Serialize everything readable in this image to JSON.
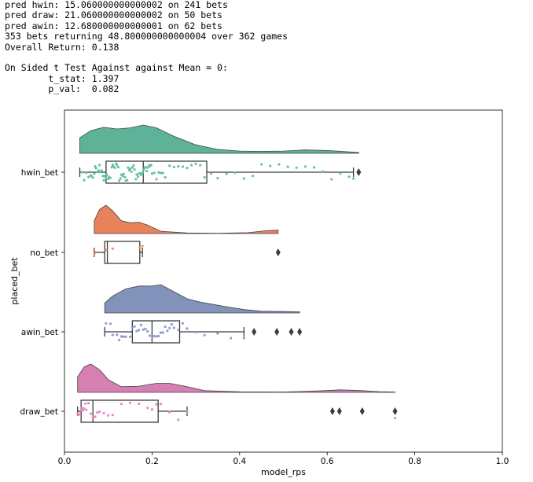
{
  "console": {
    "lines": [
      "pred hwin: 15.060000000000002 on 241 bets",
      "pred draw: 21.060000000000002 on 50 bets",
      "pred awin: 12.680000000000001 on 62 bets",
      "353 bets returning 48.800000000000004 over 362 games",
      "Overall Return: 0.138",
      "",
      "On Sided t Test Against against Mean = 0:",
      "        t_stat: 1.397",
      "        p_val:  0.082"
    ]
  },
  "chart_data": {
    "type": "raincloud",
    "xlabel": "model_rps",
    "ylabel": "placed_bet",
    "xlim": [
      0.0,
      1.0
    ],
    "xticks": [
      "0.0",
      "0.2",
      "0.4",
      "0.6",
      "0.8",
      "1.0"
    ],
    "xtick_values": [
      0.0,
      0.2,
      0.4,
      0.6,
      0.8,
      1.0
    ],
    "grid": false,
    "orientation": "horizontal",
    "categories": [
      "hwin_bet",
      "no_bet",
      "awin_bet",
      "draw_bet"
    ],
    "series": [
      {
        "name": "hwin_bet",
        "color": "#66c2a5",
        "box": {
          "whisker_low": 0.035,
          "q1": 0.095,
          "median": 0.18,
          "q3": 0.325,
          "whisker_high": 0.66
        },
        "outliers": [
          0.672
        ],
        "density_range": [
          0.035,
          0.672
        ],
        "density": [
          [
            0.035,
            0.55
          ],
          [
            0.06,
            0.8
          ],
          [
            0.09,
            0.92
          ],
          [
            0.12,
            0.86
          ],
          [
            0.15,
            0.9
          ],
          [
            0.18,
            1.0
          ],
          [
            0.21,
            0.9
          ],
          [
            0.25,
            0.6
          ],
          [
            0.3,
            0.3
          ],
          [
            0.35,
            0.14
          ],
          [
            0.4,
            0.08
          ],
          [
            0.45,
            0.07
          ],
          [
            0.5,
            0.08
          ],
          [
            0.55,
            0.12
          ],
          [
            0.6,
            0.1
          ],
          [
            0.64,
            0.06
          ],
          [
            0.672,
            0.03
          ]
        ],
        "points": [
          0.04,
          0.045,
          0.05,
          0.055,
          0.06,
          0.062,
          0.065,
          0.068,
          0.07,
          0.072,
          0.075,
          0.078,
          0.08,
          0.082,
          0.085,
          0.088,
          0.09,
          0.092,
          0.095,
          0.097,
          0.1,
          0.102,
          0.105,
          0.108,
          0.11,
          0.112,
          0.115,
          0.118,
          0.12,
          0.123,
          0.125,
          0.128,
          0.13,
          0.133,
          0.135,
          0.138,
          0.14,
          0.143,
          0.145,
          0.148,
          0.15,
          0.153,
          0.155,
          0.158,
          0.16,
          0.163,
          0.165,
          0.168,
          0.17,
          0.173,
          0.175,
          0.178,
          0.18,
          0.183,
          0.185,
          0.188,
          0.19,
          0.193,
          0.195,
          0.198,
          0.2,
          0.205,
          0.21,
          0.215,
          0.22,
          0.225,
          0.23,
          0.24,
          0.25,
          0.26,
          0.27,
          0.28,
          0.29,
          0.3,
          0.31,
          0.32,
          0.335,
          0.35,
          0.37,
          0.39,
          0.41,
          0.43,
          0.45,
          0.47,
          0.49,
          0.51,
          0.53,
          0.55,
          0.57,
          0.59,
          0.61,
          0.63,
          0.65,
          0.66
        ]
      },
      {
        "name": "no_bet",
        "color": "#fc8d62",
        "box": {
          "whisker_low": 0.068,
          "q1": 0.092,
          "median": 0.098,
          "q3": 0.172,
          "whisker_high": 0.178
        },
        "outliers": [
          0.488
        ],
        "density_range": [
          0.068,
          0.488
        ],
        "density": [
          [
            0.068,
            0.45
          ],
          [
            0.08,
            0.85
          ],
          [
            0.095,
            1.0
          ],
          [
            0.11,
            0.8
          ],
          [
            0.13,
            0.45
          ],
          [
            0.15,
            0.38
          ],
          [
            0.17,
            0.4
          ],
          [
            0.19,
            0.3
          ],
          [
            0.22,
            0.08
          ],
          [
            0.28,
            0.02
          ],
          [
            0.35,
            0.01
          ],
          [
            0.42,
            0.03
          ],
          [
            0.46,
            0.1
          ],
          [
            0.488,
            0.12
          ]
        ],
        "points": [
          0.068,
          0.095,
          0.11,
          0.172,
          0.178
        ]
      },
      {
        "name": "awin_bet",
        "color": "#8da0cb",
        "box": {
          "whisker_low": 0.092,
          "q1": 0.155,
          "median": 0.2,
          "q3": 0.263,
          "whisker_high": 0.41
        },
        "outliers": [
          0.433,
          0.485,
          0.518,
          0.537
        ],
        "density_range": [
          0.092,
          0.537
        ],
        "density": [
          [
            0.092,
            0.35
          ],
          [
            0.11,
            0.6
          ],
          [
            0.14,
            0.85
          ],
          [
            0.17,
            0.95
          ],
          [
            0.2,
            0.95
          ],
          [
            0.22,
            1.0
          ],
          [
            0.25,
            0.75
          ],
          [
            0.28,
            0.5
          ],
          [
            0.31,
            0.38
          ],
          [
            0.34,
            0.3
          ],
          [
            0.37,
            0.22
          ],
          [
            0.41,
            0.12
          ],
          [
            0.45,
            0.06
          ],
          [
            0.5,
            0.05
          ],
          [
            0.537,
            0.04
          ]
        ],
        "points": [
          0.095,
          0.105,
          0.11,
          0.12,
          0.125,
          0.13,
          0.135,
          0.14,
          0.15,
          0.155,
          0.16,
          0.165,
          0.17,
          0.175,
          0.18,
          0.185,
          0.19,
          0.195,
          0.2,
          0.205,
          0.21,
          0.215,
          0.22,
          0.225,
          0.23,
          0.235,
          0.24,
          0.245,
          0.25,
          0.26,
          0.27,
          0.28,
          0.3,
          0.32,
          0.35,
          0.38,
          0.41
        ]
      },
      {
        "name": "draw_bet",
        "color": "#e78ac3",
        "box": {
          "whisker_low": 0.03,
          "q1": 0.038,
          "median": 0.065,
          "q3": 0.214,
          "whisker_high": 0.28
        },
        "outliers": [
          0.612,
          0.628,
          0.68,
          0.755
        ],
        "density_range": [
          0.03,
          0.755
        ],
        "density": [
          [
            0.03,
            0.55
          ],
          [
            0.045,
            0.9
          ],
          [
            0.06,
            1.0
          ],
          [
            0.08,
            0.8
          ],
          [
            0.1,
            0.45
          ],
          [
            0.13,
            0.2
          ],
          [
            0.17,
            0.22
          ],
          [
            0.21,
            0.32
          ],
          [
            0.24,
            0.32
          ],
          [
            0.28,
            0.2
          ],
          [
            0.32,
            0.06
          ],
          [
            0.4,
            0.02
          ],
          [
            0.5,
            0.015
          ],
          [
            0.58,
            0.05
          ],
          [
            0.63,
            0.09
          ],
          [
            0.68,
            0.06
          ],
          [
            0.72,
            0.025
          ],
          [
            0.755,
            0.015
          ]
        ],
        "points": [
          0.03,
          0.032,
          0.035,
          0.038,
          0.04,
          0.042,
          0.045,
          0.048,
          0.05,
          0.055,
          0.06,
          0.065,
          0.07,
          0.075,
          0.08,
          0.09,
          0.1,
          0.11,
          0.13,
          0.15,
          0.17,
          0.19,
          0.2,
          0.21,
          0.22,
          0.24,
          0.26,
          0.28,
          0.755
        ]
      }
    ]
  }
}
